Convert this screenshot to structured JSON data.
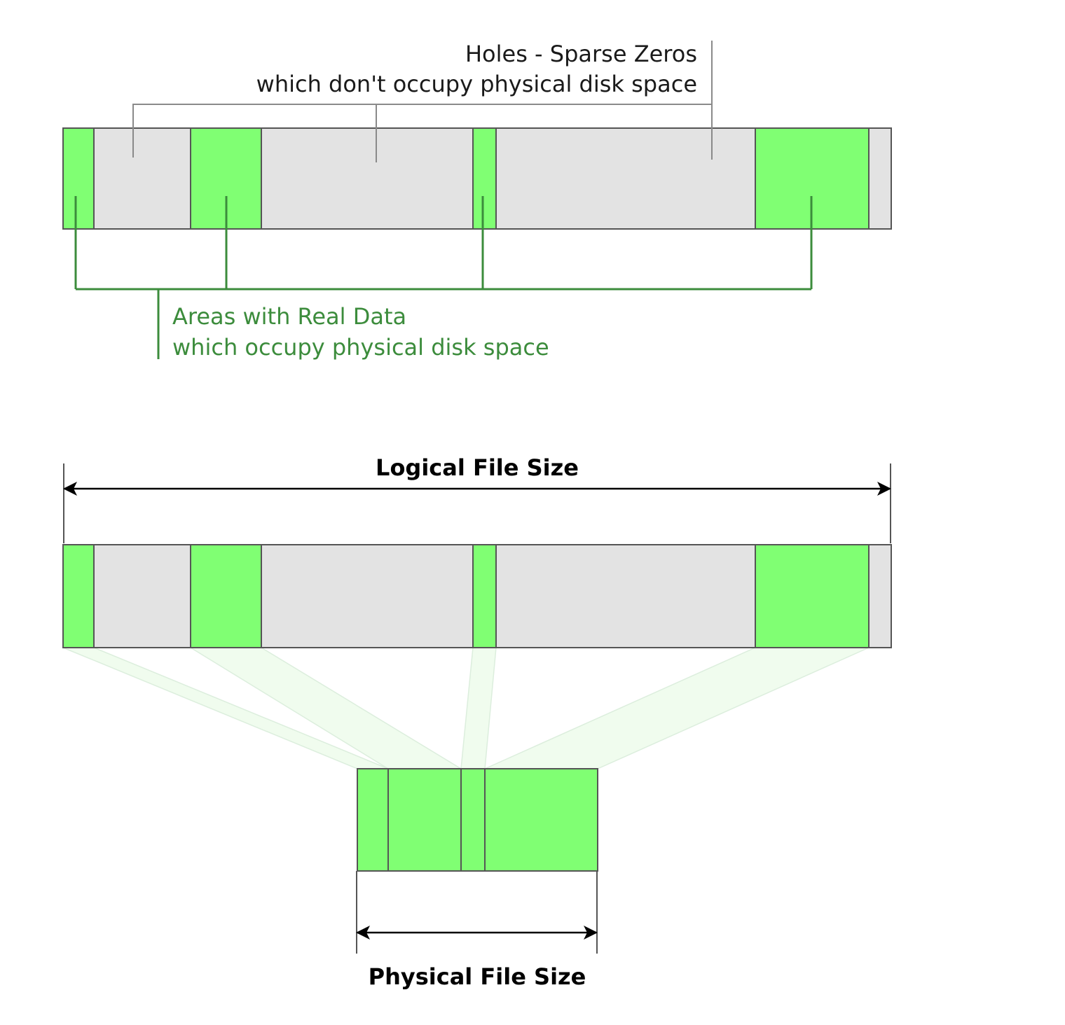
{
  "colors": {
    "data_fill": "#80ff73",
    "hole_fill": "#e3e3e3",
    "outline": "#555555",
    "gray_leader": "#8a8a8a",
    "green_leader": "#3c8c3c",
    "mapping_band": "#f0fcee"
  },
  "holes_label": {
    "line1": "Holes - Sparse Zeros",
    "line2": "which don't occupy physical disk space"
  },
  "data_label": {
    "line1": "Areas with Real Data",
    "line2": "which occupy physical disk space"
  },
  "logical_size_label": "Logical File Size",
  "physical_size_label": "Physical File Size"
}
